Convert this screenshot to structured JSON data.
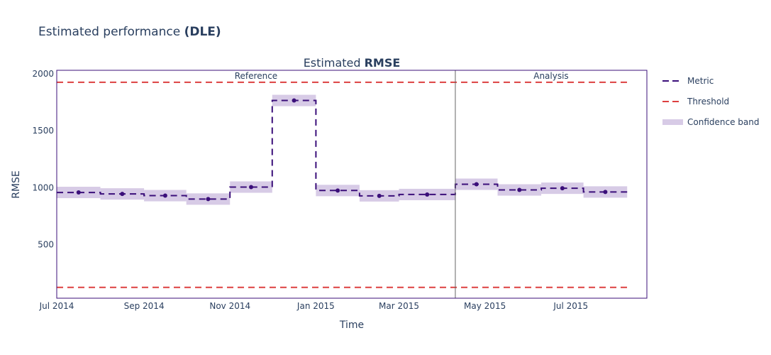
{
  "figure": {
    "title_prefix": "Estimated performance ",
    "title_bold": "(DLE)"
  },
  "chart_data": {
    "type": "line",
    "subtitle_prefix": "Estimated ",
    "subtitle_bold": "RMSE",
    "xlabel": "Time",
    "ylabel": "RMSE",
    "x_ticks": [
      "Jul 2014",
      "Sep 2014",
      "Nov 2014",
      "Jan 2015",
      "Mar 2015",
      "May 2015",
      "Jul 2015"
    ],
    "x_tick_dates": [
      "2014-07-01",
      "2014-09-01",
      "2014-11-01",
      "2015-01-01",
      "2015-03-01",
      "2015-05-01",
      "2015-07-01"
    ],
    "y_ticks": [
      500,
      1000,
      1500,
      2000
    ],
    "x_range": [
      "2014-07-01",
      "2015-08-24"
    ],
    "y_range": [
      30,
      2030
    ],
    "regions": [
      {
        "label": "Reference",
        "start": "2014-07-01",
        "end": "2015-04-10"
      },
      {
        "label": "Analysis",
        "start": "2015-04-10",
        "end": "2015-08-24"
      }
    ],
    "chunks": [
      {
        "start": "2014-07-01",
        "end": "2014-08-01",
        "value": 958,
        "lower": 908,
        "upper": 1008
      },
      {
        "start": "2014-08-01",
        "end": "2014-09-01",
        "value": 945,
        "lower": 895,
        "upper": 995
      },
      {
        "start": "2014-09-01",
        "end": "2014-10-01",
        "value": 930,
        "lower": 880,
        "upper": 980
      },
      {
        "start": "2014-10-01",
        "end": "2014-11-01",
        "value": 900,
        "lower": 850,
        "upper": 950
      },
      {
        "start": "2014-11-01",
        "end": "2014-12-01",
        "value": 1005,
        "lower": 955,
        "upper": 1055
      },
      {
        "start": "2014-12-01",
        "end": "2015-01-01",
        "value": 1765,
        "lower": 1715,
        "upper": 1815
      },
      {
        "start": "2015-01-01",
        "end": "2015-02-01",
        "value": 975,
        "lower": 925,
        "upper": 1025
      },
      {
        "start": "2015-02-01",
        "end": "2015-03-01",
        "value": 928,
        "lower": 878,
        "upper": 978
      },
      {
        "start": "2015-03-01",
        "end": "2015-04-10",
        "value": 940,
        "lower": 890,
        "upper": 990
      },
      {
        "start": "2015-04-10",
        "end": "2015-05-10",
        "value": 1030,
        "lower": 980,
        "upper": 1080
      },
      {
        "start": "2015-05-10",
        "end": "2015-06-10",
        "value": 980,
        "lower": 930,
        "upper": 1030
      },
      {
        "start": "2015-06-10",
        "end": "2015-07-10",
        "value": 995,
        "lower": 945,
        "upper": 1045
      },
      {
        "start": "2015-07-10",
        "end": "2015-08-10",
        "value": 962,
        "lower": 912,
        "upper": 1012
      }
    ],
    "thresholds": [
      {
        "value": 1925
      },
      {
        "value": 125
      }
    ],
    "legend": [
      {
        "label": "Metric",
        "kind": "metric"
      },
      {
        "label": "Threshold",
        "kind": "threshold"
      },
      {
        "label": "Confidence band",
        "kind": "band"
      }
    ],
    "legend_position": "right",
    "colors": {
      "metric": "#3b0f7a",
      "threshold": "#dd4040",
      "band": "#d7cbe6",
      "frame": "#3b0f7a",
      "divider": "#666666"
    },
    "grid": false
  }
}
